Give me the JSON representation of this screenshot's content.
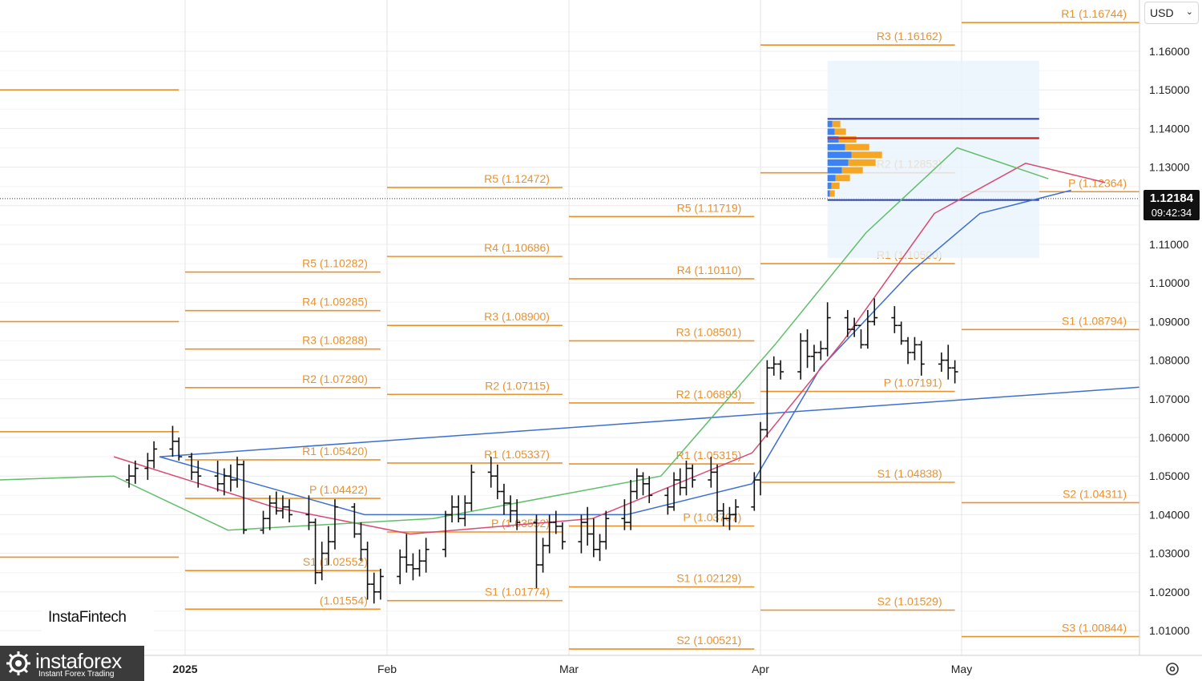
{
  "chart_data": {
    "type": "candlestick",
    "instrument_currency": "USD",
    "last_price": "1.12184",
    "countdown": "09:42:34",
    "y_axis": {
      "range": [
        1.0,
        1.17
      ],
      "ticks": [
        "1.16000",
        "1.15000",
        "1.14000",
        "1.13000",
        "1.12000",
        "1.11000",
        "1.10000",
        "1.09000",
        "1.08000",
        "1.07000",
        "1.06000",
        "1.05000",
        "1.04000",
        "1.03000",
        "1.02000",
        "1.01000"
      ]
    },
    "x_axis": {
      "labels": [
        {
          "date": "2025-01-01",
          "label": "2025"
        },
        {
          "date": "2025-02-01",
          "label": "Feb"
        },
        {
          "date": "2025-03-01",
          "label": "Mar"
        },
        {
          "date": "2025-04-01",
          "label": "Apr"
        },
        {
          "date": "2025-05-01",
          "label": "May"
        }
      ]
    },
    "pivot_periods": [
      {
        "from": "2024-12-02",
        "to": "2024-12-31",
        "levels": [
          {
            "label": "",
            "value": 1.15
          },
          {
            "label": "",
            "value": 1.09
          },
          {
            "label": "",
            "value": 1.0615
          },
          {
            "label": "",
            "value": 1.029
          }
        ]
      },
      {
        "from": "2025-01-01",
        "to": "2025-01-31",
        "levels": [
          {
            "label": "R5 (1.10282)",
            "value": 1.10282
          },
          {
            "label": "R4 (1.09285)",
            "value": 1.09285
          },
          {
            "label": "R3 (1.08288)",
            "value": 1.08288
          },
          {
            "label": "R2 (1.07290)",
            "value": 1.0729
          },
          {
            "label": "R1 (1.05420)",
            "value": 1.0542
          },
          {
            "label": "P (1.04422)",
            "value": 1.04422
          },
          {
            "label": "S1 (1.02552)",
            "value": 1.02552
          },
          {
            "label": "(1.01554)",
            "value": 1.01554
          }
        ]
      },
      {
        "from": "2025-02-01",
        "to": "2025-02-28",
        "levels": [
          {
            "label": "R5 (1.12472)",
            "value": 1.12472
          },
          {
            "label": "R4 (1.10686)",
            "value": 1.10686
          },
          {
            "label": "R3 (1.08900)",
            "value": 1.089
          },
          {
            "label": "R2 (1.07115)",
            "value": 1.07115
          },
          {
            "label": "R1 (1.05337)",
            "value": 1.05337
          },
          {
            "label": "P (1.03552)",
            "value": 1.03552
          },
          {
            "label": "S1 (1.01774)",
            "value": 1.01774
          }
        ]
      },
      {
        "from": "2025-03-01",
        "to": "2025-03-31",
        "levels": [
          {
            "label": "R5 (1.11719)",
            "value": 1.11719
          },
          {
            "label": "R4 (1.10110)",
            "value": 1.1011
          },
          {
            "label": "R3 (1.08501)",
            "value": 1.08501
          },
          {
            "label": "R2 (1.06893)",
            "value": 1.06893
          },
          {
            "label": "R1 (1.05315)",
            "value": 1.05315
          },
          {
            "label": "P (1.03707)",
            "value": 1.03707
          },
          {
            "label": "S1 (1.02129)",
            "value": 1.02129
          },
          {
            "label": "S2 (1.00521)",
            "value": 1.00521
          }
        ]
      },
      {
        "from": "2025-04-01",
        "to": "2025-04-30",
        "levels": [
          {
            "label": "R3 (1.16162)",
            "value": 1.16162
          },
          {
            "label": "R2 (1.12853)",
            "value": 1.12853
          },
          {
            "label": "R1 (1.10500)",
            "value": 1.105
          },
          {
            "label": "P (1.07191)",
            "value": 1.07191
          },
          {
            "label": "S1 (1.04838)",
            "value": 1.04838
          },
          {
            "label": "S2 (1.01529)",
            "value": 1.01529
          }
        ]
      },
      {
        "from": "2025-05-01",
        "to": "2025-05-31",
        "levels": [
          {
            "label": "R1 (1.16744)",
            "value": 1.16744
          },
          {
            "label": "P (1.12364)",
            "value": 1.12364
          },
          {
            "label": "S1 (1.08794)",
            "value": 1.08794
          },
          {
            "label": "S2 (1.04311)",
            "value": 1.04311
          },
          {
            "label": "S3 (1.00844)",
            "value": 1.00844
          }
        ]
      }
    ],
    "candles": [
      {
        "date": "2024-12-23",
        "o": 1.049,
        "h": 1.053,
        "l": 1.047,
        "c": 1.05
      },
      {
        "date": "2024-12-24",
        "o": 1.05,
        "h": 1.054,
        "l": 1.048,
        "c": 1.052
      },
      {
        "date": "2024-12-26",
        "o": 1.052,
        "h": 1.056,
        "l": 1.049,
        "c": 1.054
      },
      {
        "date": "2024-12-27",
        "o": 1.054,
        "h": 1.059,
        "l": 1.052,
        "c": 1.057
      },
      {
        "date": "2024-12-30",
        "o": 1.057,
        "h": 1.063,
        "l": 1.055,
        "c": 1.059
      },
      {
        "date": "2024-12-31",
        "o": 1.059,
        "h": 1.06,
        "l": 1.054,
        "c": 1.055
      },
      {
        "date": "2025-01-02",
        "o": 1.055,
        "h": 1.056,
        "l": 1.049,
        "c": 1.051
      },
      {
        "date": "2025-01-03",
        "o": 1.051,
        "h": 1.054,
        "l": 1.047,
        "c": 1.05
      },
      {
        "date": "2025-01-06",
        "o": 1.05,
        "h": 1.054,
        "l": 1.046,
        "c": 1.048
      },
      {
        "date": "2025-01-07",
        "o": 1.048,
        "h": 1.052,
        "l": 1.045,
        "c": 1.05
      },
      {
        "date": "2025-01-08",
        "o": 1.05,
        "h": 1.053,
        "l": 1.046,
        "c": 1.049
      },
      {
        "date": "2025-01-09",
        "o": 1.049,
        "h": 1.055,
        "l": 1.047,
        "c": 1.053
      },
      {
        "date": "2025-01-10",
        "o": 1.053,
        "h": 1.054,
        "l": 1.035,
        "c": 1.036
      },
      {
        "date": "2025-01-13",
        "o": 1.036,
        "h": 1.041,
        "l": 1.035,
        "c": 1.039
      },
      {
        "date": "2025-01-14",
        "o": 1.039,
        "h": 1.045,
        "l": 1.036,
        "c": 1.043
      },
      {
        "date": "2025-01-15",
        "o": 1.043,
        "h": 1.046,
        "l": 1.04,
        "c": 1.041
      },
      {
        "date": "2025-01-16",
        "o": 1.041,
        "h": 1.045,
        "l": 1.039,
        "c": 1.042
      },
      {
        "date": "2025-01-17",
        "o": 1.042,
        "h": 1.044,
        "l": 1.038,
        "c": 1.04
      },
      {
        "date": "2025-01-20",
        "o": 1.04,
        "h": 1.045,
        "l": 1.036,
        "c": 1.038
      },
      {
        "date": "2025-01-21",
        "o": 1.038,
        "h": 1.039,
        "l": 1.022,
        "c": 1.025
      },
      {
        "date": "2025-01-22",
        "o": 1.025,
        "h": 1.033,
        "l": 1.023,
        "c": 1.03
      },
      {
        "date": "2025-01-23",
        "o": 1.03,
        "h": 1.037,
        "l": 1.027,
        "c": 1.033
      },
      {
        "date": "2025-01-24",
        "o": 1.033,
        "h": 1.044,
        "l": 1.031,
        "c": 1.042
      },
      {
        "date": "2025-01-27",
        "o": 1.042,
        "h": 1.043,
        "l": 1.034,
        "c": 1.035
      },
      {
        "date": "2025-01-28",
        "o": 1.035,
        "h": 1.038,
        "l": 1.028,
        "c": 1.031
      },
      {
        "date": "2025-01-29",
        "o": 1.031,
        "h": 1.033,
        "l": 1.018,
        "c": 1.022
      },
      {
        "date": "2025-01-30",
        "o": 1.022,
        "h": 1.025,
        "l": 1.017,
        "c": 1.02
      },
      {
        "date": "2025-01-31",
        "o": 1.02,
        "h": 1.026,
        "l": 1.018,
        "c": 1.024
      },
      {
        "date": "2025-02-03",
        "o": 1.024,
        "h": 1.031,
        "l": 1.022,
        "c": 1.029
      },
      {
        "date": "2025-02-04",
        "o": 1.029,
        "h": 1.035,
        "l": 1.025,
        "c": 1.027
      },
      {
        "date": "2025-02-05",
        "o": 1.027,
        "h": 1.03,
        "l": 1.023,
        "c": 1.026
      },
      {
        "date": "2025-02-06",
        "o": 1.026,
        "h": 1.031,
        "l": 1.024,
        "c": 1.028
      },
      {
        "date": "2025-02-07",
        "o": 1.028,
        "h": 1.034,
        "l": 1.025,
        "c": 1.031
      },
      {
        "date": "2025-02-10",
        "o": 1.031,
        "h": 1.041,
        "l": 1.029,
        "c": 1.04
      },
      {
        "date": "2025-02-11",
        "o": 1.04,
        "h": 1.045,
        "l": 1.038,
        "c": 1.042
      },
      {
        "date": "2025-02-12",
        "o": 1.042,
        "h": 1.045,
        "l": 1.038,
        "c": 1.039
      },
      {
        "date": "2025-02-13",
        "o": 1.039,
        "h": 1.045,
        "l": 1.037,
        "c": 1.043
      },
      {
        "date": "2025-02-14",
        "o": 1.043,
        "h": 1.053,
        "l": 1.041,
        "c": 1.051
      },
      {
        "date": "2025-02-17",
        "o": 1.051,
        "h": 1.055,
        "l": 1.047,
        "c": 1.05
      },
      {
        "date": "2025-02-18",
        "o": 1.05,
        "h": 1.053,
        "l": 1.044,
        "c": 1.046
      },
      {
        "date": "2025-02-19",
        "o": 1.046,
        "h": 1.048,
        "l": 1.04,
        "c": 1.043
      },
      {
        "date": "2025-02-20",
        "o": 1.043,
        "h": 1.045,
        "l": 1.038,
        "c": 1.041
      },
      {
        "date": "2025-02-21",
        "o": 1.041,
        "h": 1.044,
        "l": 1.036,
        "c": 1.038
      },
      {
        "date": "2025-02-24",
        "o": 1.038,
        "h": 1.04,
        "l": 1.021,
        "c": 1.027
      },
      {
        "date": "2025-02-25",
        "o": 1.027,
        "h": 1.034,
        "l": 1.025,
        "c": 1.032
      },
      {
        "date": "2025-02-26",
        "o": 1.032,
        "h": 1.04,
        "l": 1.03,
        "c": 1.038
      },
      {
        "date": "2025-02-27",
        "o": 1.038,
        "h": 1.041,
        "l": 1.035,
        "c": 1.037
      },
      {
        "date": "2025-02-28",
        "o": 1.037,
        "h": 1.038,
        "l": 1.031,
        "c": 1.033
      },
      {
        "date": "2025-03-03",
        "o": 1.033,
        "h": 1.04,
        "l": 1.03,
        "c": 1.038
      },
      {
        "date": "2025-03-04",
        "o": 1.038,
        "h": 1.042,
        "l": 1.032,
        "c": 1.035
      },
      {
        "date": "2025-03-05",
        "o": 1.035,
        "h": 1.039,
        "l": 1.029,
        "c": 1.031
      },
      {
        "date": "2025-03-06",
        "o": 1.031,
        "h": 1.035,
        "l": 1.028,
        "c": 1.033
      },
      {
        "date": "2025-03-07",
        "o": 1.033,
        "h": 1.041,
        "l": 1.031,
        "c": 1.039
      },
      {
        "date": "2025-03-10",
        "o": 1.039,
        "h": 1.044,
        "l": 1.036,
        "c": 1.038
      },
      {
        "date": "2025-03-11",
        "o": 1.038,
        "h": 1.049,
        "l": 1.036,
        "c": 1.046
      },
      {
        "date": "2025-03-12",
        "o": 1.046,
        "h": 1.052,
        "l": 1.044,
        "c": 1.05
      },
      {
        "date": "2025-03-13",
        "o": 1.05,
        "h": 1.051,
        "l": 1.045,
        "c": 1.048
      },
      {
        "date": "2025-03-14",
        "o": 1.048,
        "h": 1.05,
        "l": 1.043,
        "c": 1.045
      },
      {
        "date": "2025-03-17",
        "o": 1.045,
        "h": 1.047,
        "l": 1.04,
        "c": 1.042
      },
      {
        "date": "2025-03-18",
        "o": 1.042,
        "h": 1.051,
        "l": 1.041,
        "c": 1.049
      },
      {
        "date": "2025-03-19",
        "o": 1.049,
        "h": 1.052,
        "l": 1.045,
        "c": 1.047
      },
      {
        "date": "2025-03-20",
        "o": 1.047,
        "h": 1.054,
        "l": 1.045,
        "c": 1.052
      },
      {
        "date": "2025-03-21",
        "o": 1.052,
        "h": 1.053,
        "l": 1.047,
        "c": 1.049
      },
      {
        "date": "2025-03-24",
        "o": 1.049,
        "h": 1.055,
        "l": 1.047,
        "c": 1.051
      },
      {
        "date": "2025-03-25",
        "o": 1.051,
        "h": 1.053,
        "l": 1.038,
        "c": 1.041
      },
      {
        "date": "2025-03-26",
        "o": 1.041,
        "h": 1.043,
        "l": 1.037,
        "c": 1.039
      },
      {
        "date": "2025-03-27",
        "o": 1.039,
        "h": 1.042,
        "l": 1.036,
        "c": 1.04
      },
      {
        "date": "2025-03-28",
        "o": 1.04,
        "h": 1.044,
        "l": 1.038,
        "c": 1.042
      },
      {
        "date": "2025-03-31",
        "o": 1.042,
        "h": 1.051,
        "l": 1.041,
        "c": 1.049
      },
      {
        "date": "2025-04-01",
        "o": 1.049,
        "h": 1.064,
        "l": 1.045,
        "c": 1.062
      },
      {
        "date": "2025-04-02",
        "o": 1.062,
        "h": 1.08,
        "l": 1.06,
        "c": 1.078
      },
      {
        "date": "2025-04-03",
        "o": 1.078,
        "h": 1.081,
        "l": 1.076,
        "c": 1.079
      },
      {
        "date": "2025-04-04",
        "o": 1.079,
        "h": 1.08,
        "l": 1.075,
        "c": 1.077
      },
      {
        "date": "2025-04-07",
        "o": 1.077,
        "h": 1.087,
        "l": 1.075,
        "c": 1.085
      },
      {
        "date": "2025-04-08",
        "o": 1.085,
        "h": 1.088,
        "l": 1.078,
        "c": 1.081
      },
      {
        "date": "2025-04-09",
        "o": 1.081,
        "h": 1.084,
        "l": 1.077,
        "c": 1.082
      },
      {
        "date": "2025-04-10",
        "o": 1.082,
        "h": 1.085,
        "l": 1.08,
        "c": 1.083
      },
      {
        "date": "2025-04-11",
        "o": 1.083,
        "h": 1.095,
        "l": 1.081,
        "c": 1.091
      },
      {
        "date": "2025-04-14",
        "o": 1.091,
        "h": 1.093,
        "l": 1.086,
        "c": 1.088
      },
      {
        "date": "2025-04-15",
        "o": 1.088,
        "h": 1.091,
        "l": 1.086,
        "c": 1.089
      },
      {
        "date": "2025-04-16",
        "o": 1.089,
        "h": 1.088,
        "l": 1.083,
        "c": 1.084
      },
      {
        "date": "2025-04-17",
        "o": 1.084,
        "h": 1.093,
        "l": 1.083,
        "c": 1.09
      },
      {
        "date": "2025-04-18",
        "o": 1.09,
        "h": 1.096,
        "l": 1.089,
        "c": 1.091
      },
      {
        "date": "2025-04-21",
        "o": 1.091,
        "h": 1.094,
        "l": 1.087,
        "c": 1.089
      },
      {
        "date": "2025-04-22",
        "o": 1.089,
        "h": 1.09,
        "l": 1.084,
        "c": 1.085
      },
      {
        "date": "2025-04-23",
        "o": 1.085,
        "h": 1.086,
        "l": 1.079,
        "c": 1.082
      },
      {
        "date": "2025-04-24",
        "o": 1.082,
        "h": 1.086,
        "l": 1.08,
        "c": 1.084
      },
      {
        "date": "2025-04-25",
        "o": 1.084,
        "h": 1.085,
        "l": 1.076,
        "c": 1.079
      },
      {
        "date": "2025-04-28",
        "o": 1.079,
        "h": 1.082,
        "l": 1.077,
        "c": 1.08
      },
      {
        "date": "2025-04-29",
        "o": 1.08,
        "h": 1.084,
        "l": 1.075,
        "c": 1.078
      },
      {
        "date": "2025-04-30",
        "o": 1.078,
        "h": 1.08,
        "l": 1.074,
        "c": 1.077
      }
    ],
    "moving_averages": [
      {
        "color": "#3d6fd1",
        "points": [
          [
            1.0,
            1.073
          ],
          [
            0.14,
            1.055
          ],
          [
            0.32,
            1.04
          ],
          [
            0.55,
            1.04
          ],
          [
            0.66,
            1.048
          ],
          [
            0.72,
            1.078
          ],
          [
            0.8,
            1.103
          ],
          [
            0.86,
            1.118
          ],
          [
            0.94,
            1.124
          ]
        ]
      },
      {
        "color": "#d94a72",
        "points": [
          [
            0.1,
            1.055
          ],
          [
            0.24,
            1.042
          ],
          [
            0.36,
            1.035
          ],
          [
            0.52,
            1.039
          ],
          [
            0.66,
            1.056
          ],
          [
            0.74,
            1.085
          ],
          [
            0.82,
            1.118
          ],
          [
            0.9,
            1.131
          ],
          [
            0.97,
            1.126
          ]
        ]
      },
      {
        "color": "#5fbf6a",
        "points": [
          [
            0.0,
            1.049
          ],
          [
            0.1,
            1.05
          ],
          [
            0.2,
            1.036
          ],
          [
            0.38,
            1.039
          ],
          [
            0.58,
            1.05
          ],
          [
            0.68,
            1.084
          ],
          [
            0.76,
            1.113
          ],
          [
            0.84,
            1.135
          ],
          [
            0.92,
            1.127
          ]
        ]
      }
    ]
  },
  "watermarks": {
    "brand_logo": "instaforex",
    "brand_tagline": "Instant Forex Trading",
    "publisher": "InstaFintech"
  },
  "icons": {
    "currency_dropdown": "chevron-down-icon",
    "settings": "gear-icon"
  },
  "colors": {
    "pivot": "#e8922f",
    "bars": "#111111",
    "volume_profile_buy": "#f5a623",
    "volume_profile_sell": "#3b82f6",
    "poc_line": "#d12c2c",
    "value_area_line": "#2a3fa8"
  }
}
